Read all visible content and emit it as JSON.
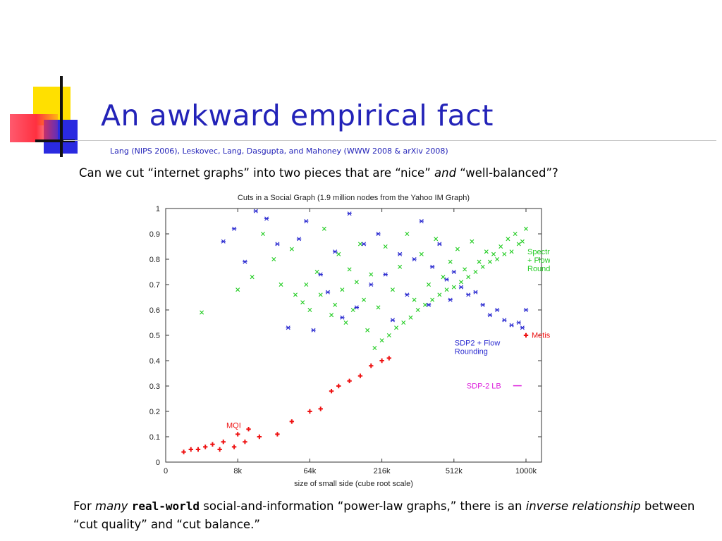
{
  "slide": {
    "title": "An awkward empirical fact",
    "citation": "Lang (NIPS 2006), Leskovec, Lang, Dasgupta, and Mahoney (WWW 2008 & arXiv 2008)",
    "question": {
      "part1": "Can we cut “internet graphs” into two pieces that are “nice” ",
      "emph": "and",
      "part2": " “well-balanced”?"
    },
    "conclusion": {
      "t1": "For ",
      "t2": "many",
      "t3": "real-world",
      "t4": " social-and-information “power-law graphs,” there is an ",
      "t5": "inverse relationship",
      "t6": " between “cut quality” and “cut balance.”"
    },
    "colors": {
      "title": "#2323b8",
      "decor_yellow": "#ffe000",
      "decor_blue": "#2a2ae0",
      "decor_red": "#ff3040"
    }
  },
  "chart_data": {
    "type": "scatter",
    "title": "Cuts in a Social Graph (1.9 million nodes from the Yahoo IM Graph)",
    "xlabel": "size of small side (cube root scale)",
    "ylabel": "",
    "x_scale": "cube-root",
    "x_ticks": [
      0,
      8000,
      64000,
      216000,
      512000,
      1000000
    ],
    "x_tick_labels": [
      "0",
      "8k",
      "64k",
      "216k",
      "512k",
      "1000k"
    ],
    "xlim": [
      0,
      1000000
    ],
    "ylim": [
      0,
      1
    ],
    "y_ticks": [
      0,
      0.1,
      0.2,
      0.3,
      0.4,
      0.5,
      0.6,
      0.7,
      0.8,
      0.9,
      1
    ],
    "y_tick_labels": [
      "0",
      "0.1",
      "0.2",
      "0.3",
      "0.4",
      "0.5",
      "0.6",
      "0.7",
      "0.8",
      "0.9",
      "1"
    ],
    "grid": false,
    "series": [
      {
        "name": "Spectral + Flow Rounding",
        "label_lines": [
          "Spectral",
          "+ Flow",
          "Rounding"
        ],
        "color": "#22cc22",
        "marker": "x",
        "points": [
          [
            1000,
            0.59
          ],
          [
            8000,
            0.68
          ],
          [
            13824,
            0.73
          ],
          [
            19683,
            0.9
          ],
          [
            27000,
            0.8
          ],
          [
            32768,
            0.7
          ],
          [
            42875,
            0.84
          ],
          [
            46656,
            0.66
          ],
          [
            54872,
            0.63
          ],
          [
            59319,
            0.7
          ],
          [
            64000,
            0.6
          ],
          [
            74088,
            0.75
          ],
          [
            79507,
            0.66
          ],
          [
            85184,
            0.92
          ],
          [
            97336,
            0.58
          ],
          [
            103823,
            0.62
          ],
          [
            110592,
            0.82
          ],
          [
            117649,
            0.68
          ],
          [
            125000,
            0.55
          ],
          [
            132651,
            0.76
          ],
          [
            140608,
            0.6
          ],
          [
            148877,
            0.71
          ],
          [
            157464,
            0.86
          ],
          [
            166375,
            0.64
          ],
          [
            175616,
            0.52
          ],
          [
            185193,
            0.74
          ],
          [
            195112,
            0.45
          ],
          [
            205379,
            0.61
          ],
          [
            216000,
            0.48
          ],
          [
            226981,
            0.85
          ],
          [
            238328,
            0.5
          ],
          [
            250047,
            0.68
          ],
          [
            262144,
            0.53
          ],
          [
            274625,
            0.77
          ],
          [
            287496,
            0.55
          ],
          [
            300763,
            0.9
          ],
          [
            314432,
            0.57
          ],
          [
            328509,
            0.64
          ],
          [
            343000,
            0.6
          ],
          [
            357911,
            0.82
          ],
          [
            373248,
            0.62
          ],
          [
            389017,
            0.7
          ],
          [
            405224,
            0.64
          ],
          [
            421875,
            0.88
          ],
          [
            438976,
            0.66
          ],
          [
            456533,
            0.73
          ],
          [
            474552,
            0.68
          ],
          [
            493039,
            0.79
          ],
          [
            512000,
            0.69
          ],
          [
            531441,
            0.84
          ],
          [
            551368,
            0.71
          ],
          [
            571787,
            0.76
          ],
          [
            592704,
            0.73
          ],
          [
            614125,
            0.87
          ],
          [
            636056,
            0.75
          ],
          [
            658503,
            0.79
          ],
          [
            681472,
            0.77
          ],
          [
            704969,
            0.83
          ],
          [
            729000,
            0.79
          ],
          [
            753571,
            0.82
          ],
          [
            778688,
            0.8
          ],
          [
            804357,
            0.85
          ],
          [
            830584,
            0.82
          ],
          [
            857375,
            0.88
          ],
          [
            884736,
            0.83
          ],
          [
            912673,
            0.9
          ],
          [
            941192,
            0.86
          ],
          [
            970299,
            0.87
          ],
          [
            1000000,
            0.92
          ]
        ]
      },
      {
        "name": "SDP2 + Flow Rounding",
        "label_lines": [
          "SDP2 + Flow",
          "Rounding"
        ],
        "color": "#2a2ad0",
        "marker": "*",
        "points": [
          [
            4096,
            0.87
          ],
          [
            6859,
            0.92
          ],
          [
            10648,
            0.79
          ],
          [
            15625,
            0.99
          ],
          [
            21952,
            0.96
          ],
          [
            29791,
            0.86
          ],
          [
            39304,
            0.53
          ],
          [
            50653,
            0.88
          ],
          [
            59319,
            0.95
          ],
          [
            68921,
            0.52
          ],
          [
            79507,
            0.74
          ],
          [
            91125,
            0.67
          ],
          [
            103823,
            0.83
          ],
          [
            117649,
            0.57
          ],
          [
            132651,
            0.98
          ],
          [
            148877,
            0.61
          ],
          [
            166375,
            0.86
          ],
          [
            185193,
            0.7
          ],
          [
            205379,
            0.9
          ],
          [
            226981,
            0.74
          ],
          [
            250047,
            0.56
          ],
          [
            274625,
            0.82
          ],
          [
            300763,
            0.66
          ],
          [
            328509,
            0.8
          ],
          [
            357911,
            0.95
          ],
          [
            389017,
            0.62
          ],
          [
            405224,
            0.77
          ],
          [
            438976,
            0.86
          ],
          [
            474552,
            0.72
          ],
          [
            493039,
            0.64
          ],
          [
            512000,
            0.75
          ],
          [
            551368,
            0.69
          ],
          [
            592704,
            0.66
          ],
          [
            636056,
            0.67
          ],
          [
            681472,
            0.62
          ],
          [
            729000,
            0.58
          ],
          [
            778688,
            0.6
          ],
          [
            830584,
            0.56
          ],
          [
            884736,
            0.54
          ],
          [
            941192,
            0.55
          ],
          [
            970299,
            0.53
          ],
          [
            1000000,
            0.6
          ]
        ]
      },
      {
        "name": "Metis",
        "label_lines": [
          "Metis"
        ],
        "color": "#ee1111",
        "marker": "+",
        "points": [
          [
            3375,
            0.05
          ],
          [
            6859,
            0.06
          ],
          [
            10648,
            0.08
          ],
          [
            17576,
            0.1
          ],
          [
            29791,
            0.11
          ],
          [
            42875,
            0.16
          ],
          [
            64000,
            0.2
          ],
          [
            79507,
            0.21
          ],
          [
            97336,
            0.28
          ],
          [
            110592,
            0.3
          ],
          [
            132651,
            0.32
          ],
          [
            157464,
            0.34
          ],
          [
            185193,
            0.38
          ],
          [
            216000,
            0.4
          ],
          [
            238328,
            0.41
          ],
          [
            1000000,
            0.5
          ]
        ]
      },
      {
        "name": "MQI",
        "label_lines": [
          "MQI"
        ],
        "color": "#ee1111",
        "marker": "+",
        "points": [
          [
            125,
            0.04
          ],
          [
            343,
            0.05
          ],
          [
            729,
            0.05
          ],
          [
            1331,
            0.06
          ],
          [
            2197,
            0.07
          ],
          [
            4096,
            0.08
          ],
          [
            8000,
            0.11
          ],
          [
            12167,
            0.13
          ]
        ]
      },
      {
        "name": "SDP-2 LB",
        "label_lines": [
          "SDP-2 LB"
        ],
        "color": "#dd22dd",
        "marker": "legend-line",
        "points": []
      }
    ]
  }
}
